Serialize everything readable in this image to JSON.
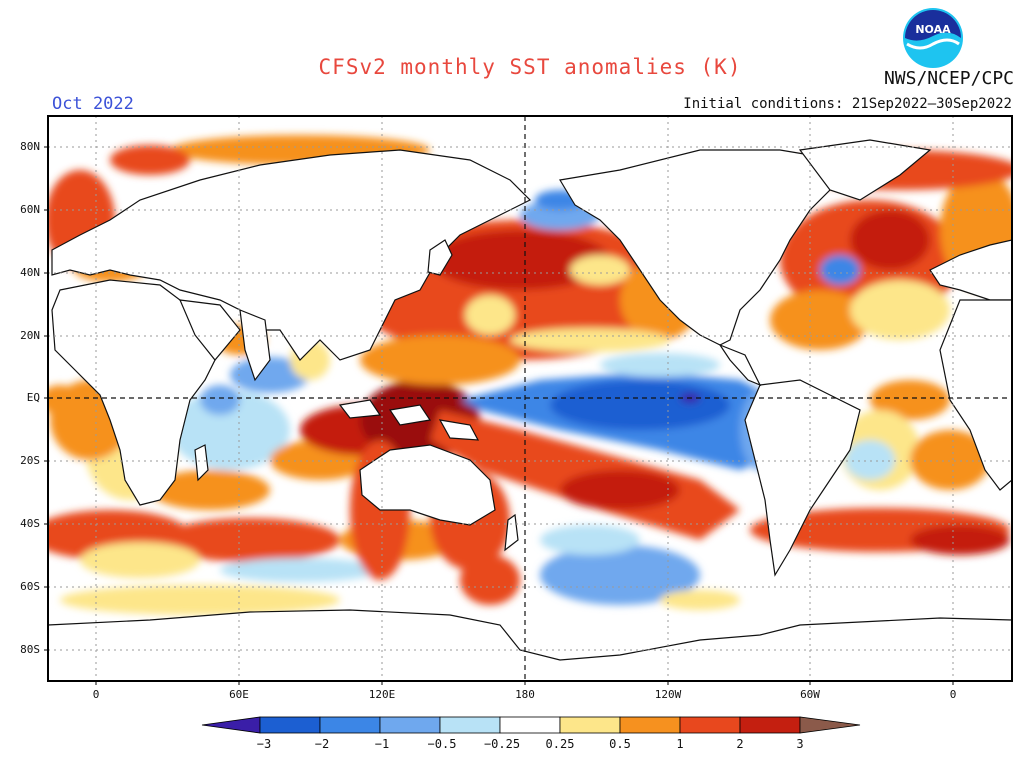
{
  "header": {
    "title": "CFSv2 monthly SST anomalies (K)",
    "agency": "NWS/NCEP/CPC",
    "month": "Oct 2022",
    "initial_conditions": "Initial conditions: 21Sep2022–30Sep2022",
    "logo_text": "NOAA"
  },
  "map": {
    "lat_labels": [
      "80N",
      "60N",
      "40N",
      "20N",
      "EQ",
      "20S",
      "40S",
      "60S",
      "80S"
    ],
    "lon_labels": [
      "0",
      "60E",
      "120E",
      "180",
      "120W",
      "60W",
      "0"
    ]
  },
  "colorbar": {
    "labels": [
      "−3",
      "−2",
      "−1",
      "−0.5",
      "−0.25",
      "0.25",
      "0.5",
      "1",
      "2",
      "3"
    ],
    "colors": [
      "#3a1ea8",
      "#1c5fd2",
      "#3c86e6",
      "#6fa8ee",
      "#b8e2f6",
      "#ffffff",
      "#fde68a",
      "#f6911f",
      "#e8481e",
      "#c41f10",
      "#9a1008",
      "#8b5a4a"
    ]
  }
}
